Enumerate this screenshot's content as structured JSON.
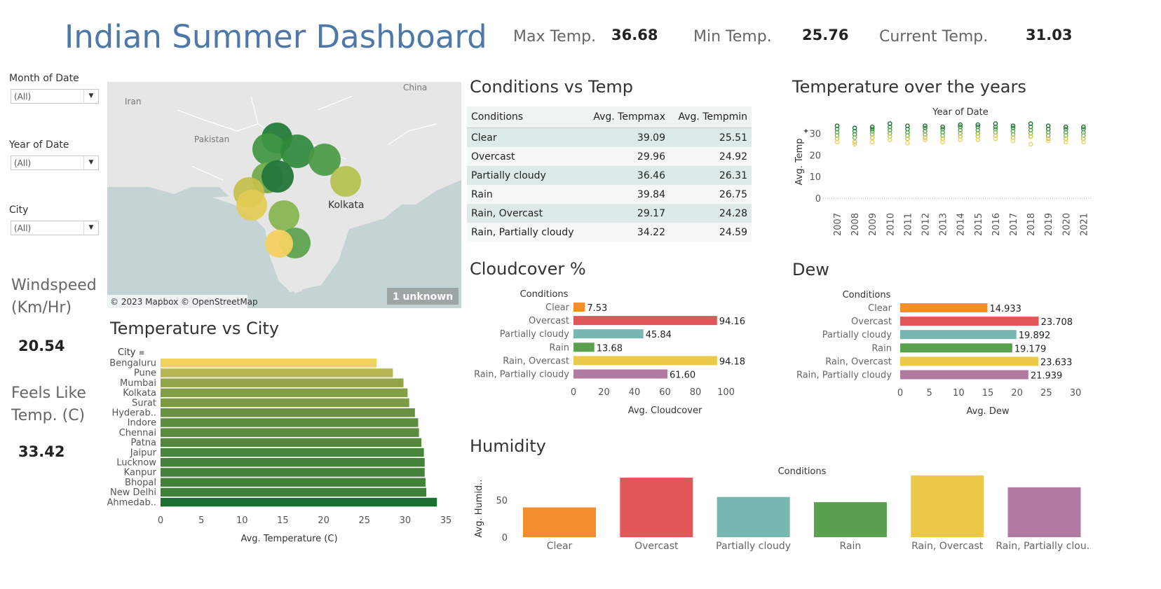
{
  "title": "Indian Summer Dashboard",
  "kpis": {
    "max_label": "Max Temp.",
    "max_value": "36.68",
    "min_label": "Min Temp.",
    "min_value": "25.76",
    "current_label": "Current Temp.",
    "current_value": "31.03"
  },
  "filters": {
    "month_label": "Month of Date",
    "month_value": "(All)",
    "year_label": "Year of Date",
    "year_value": "(All)",
    "city_label": "City",
    "city_value": "(All)"
  },
  "side": {
    "windspeed_label_1": "Windspeed",
    "windspeed_label_2": "(Km/Hr)",
    "windspeed_value": "20.54",
    "feels_label_1": "Feels Like",
    "feels_label_2": "Temp. (C)",
    "feels_value": "33.42"
  },
  "map": {
    "labels": {
      "iran": "Iran",
      "china": "China",
      "pakistan": "Pakistan",
      "kolkata": "Kolkata"
    },
    "attribution": "© 2023 Mapbox © OpenStreetMap",
    "unknown_badge": "1 unknown"
  },
  "colors": {
    "clear": "#f28e2b",
    "overcast": "#e15759",
    "partially_cloudy": "#76b7b2",
    "rain": "#59a14f",
    "rain_overcast": "#edc948",
    "rain_partially_cloudy": "#b07aa1"
  },
  "chart_data": [
    {
      "id": "temp_vs_city",
      "type": "bar",
      "title": "Temperature vs City",
      "header": "City",
      "xlabel": "Avg. Temperature (C)",
      "xlim": [
        0,
        35
      ],
      "xticks": [
        0,
        5,
        10,
        15,
        20,
        25,
        30,
        35
      ],
      "categories": [
        "Bengaluru",
        "Pune",
        "Mumbai",
        "Kolkata",
        "Surat",
        "Hyderab..",
        "Indore",
        "Chennai",
        "Patna",
        "Jaipur",
        "Lucknow",
        "Kanpur",
        "Bhopal",
        "New Delhi",
        "Ahmedab.."
      ],
      "values": [
        26.5,
        28.5,
        29.8,
        30.3,
        30.5,
        31.2,
        31.6,
        31.7,
        32.0,
        32.3,
        32.4,
        32.4,
        32.5,
        32.6,
        33.9
      ]
    },
    {
      "id": "conditions_vs_temp",
      "type": "table",
      "title": "Conditions vs Temp",
      "columns": [
        "Conditions",
        "Avg. Tempmax",
        "Avg. Tempmin"
      ],
      "rows": [
        [
          "Clear",
          "39.09",
          "25.51"
        ],
        [
          "Overcast",
          "29.96",
          "24.92"
        ],
        [
          "Partially cloudy",
          "36.46",
          "26.31"
        ],
        [
          "Rain",
          "39.84",
          "26.75"
        ],
        [
          "Rain, Overcast",
          "29.17",
          "24.28"
        ],
        [
          "Rain, Partially cloudy",
          "34.22",
          "24.59"
        ]
      ]
    },
    {
      "id": "temp_over_years",
      "type": "scatter",
      "title": "Temperature over the years",
      "header": "Year of Date",
      "ylabel": "Avg. Temp",
      "ylim": [
        0,
        35
      ],
      "yticks": [
        0,
        10,
        20,
        30
      ],
      "years": [
        "2007",
        "2008",
        "2009",
        "2010",
        "2011",
        "2012",
        "2013",
        "2014",
        "2015",
        "2016",
        "2017",
        "2018",
        "2019",
        "2020",
        "2021"
      ],
      "series": [
        {
          "values": [
            33.5,
            32.5,
            33.0,
            34.5,
            33.5,
            33.5,
            33.0,
            34.0,
            34.0,
            34.5,
            33.5,
            34.5,
            33.5,
            33.0,
            33.0
          ]
        },
        {
          "values": [
            32.0,
            31.0,
            32.0,
            33.0,
            32.0,
            32.5,
            32.0,
            33.0,
            33.0,
            33.0,
            32.5,
            33.0,
            32.0,
            32.0,
            32.0
          ]
        },
        {
          "values": [
            30.5,
            29.5,
            31.0,
            31.5,
            30.5,
            31.0,
            30.5,
            31.5,
            31.5,
            32.0,
            31.0,
            31.5,
            30.5,
            30.5,
            30.5
          ]
        },
        {
          "values": [
            29.0,
            28.0,
            29.5,
            30.0,
            29.0,
            29.5,
            29.0,
            30.0,
            30.0,
            30.5,
            29.5,
            30.0,
            29.0,
            29.0,
            29.0
          ]
        },
        {
          "values": [
            27.5,
            26.0,
            28.0,
            28.5,
            27.5,
            28.0,
            27.5,
            28.5,
            28.5,
            29.0,
            28.0,
            28.5,
            27.5,
            27.5,
            27.5
          ]
        },
        {
          "values": [
            26.0,
            25.0,
            26.0,
            27.0,
            25.5,
            27.0,
            26.0,
            27.0,
            27.0,
            27.5,
            26.5,
            25.0,
            26.5,
            26.0,
            26.0
          ]
        }
      ]
    },
    {
      "id": "cloudcover",
      "type": "bar",
      "title": "Cloudcover %",
      "header": "Conditions",
      "xlabel": "Avg. Cloudcover",
      "xlim": [
        0,
        120
      ],
      "xticks": [
        0,
        20,
        40,
        60,
        80,
        100
      ],
      "categories": [
        "Clear",
        "Overcast",
        "Partially cloudy",
        "Rain",
        "Rain, Overcast",
        "Rain, Partially cloudy"
      ],
      "values": [
        7.53,
        94.16,
        45.84,
        13.68,
        94.18,
        61.6
      ],
      "labels": [
        "7.53",
        "94.16",
        "45.84",
        "13.68",
        "94.18",
        "61.60"
      ]
    },
    {
      "id": "dew",
      "type": "bar",
      "title": "Dew",
      "header": "Conditions",
      "xlabel": "Avg. Dew",
      "xlim": [
        0,
        30
      ],
      "xticks": [
        0,
        5,
        10,
        15,
        20,
        25,
        30
      ],
      "categories": [
        "Clear",
        "Overcast",
        "Partially cloudy",
        "Rain",
        "Rain, Overcast",
        "Rain, Partially cloudy"
      ],
      "values": [
        14.933,
        23.708,
        19.892,
        19.179,
        23.633,
        21.939
      ],
      "labels": [
        "14.933",
        "23.708",
        "19.892",
        "19.179",
        "23.633",
        "21.939"
      ]
    },
    {
      "id": "humidity",
      "type": "bar",
      "title": "Humidity",
      "header": "Conditions",
      "ylabel": "Avg. Humid..",
      "ylim": [
        0,
        80
      ],
      "yticks": [
        0,
        50
      ],
      "categories": [
        "Clear",
        "Overcast",
        "Partially cloudy",
        "Rain",
        "Rain, Overcast",
        "Rain, Partially clou.."
      ],
      "values": [
        40,
        80,
        54,
        47,
        83,
        67
      ]
    }
  ]
}
